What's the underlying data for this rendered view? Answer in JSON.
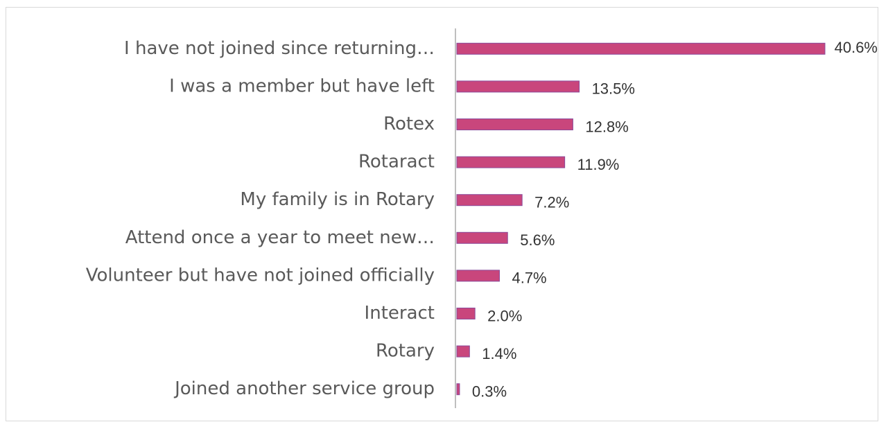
{
  "chart_data": {
    "type": "barh",
    "categories": [
      "I have not joined since returning…",
      "I was a member but have left",
      "Rotex",
      "Rotaract",
      "My family is in Rotary",
      "Attend once a year to meet new…",
      "Volunteer but have not joined officially",
      "Interact",
      "Rotary",
      "Joined another service group"
    ],
    "values": [
      40.6,
      13.5,
      12.8,
      11.9,
      7.2,
      5.6,
      4.7,
      2.0,
      1.4,
      0.3
    ],
    "value_labels": [
      "40.6%",
      "13.5%",
      "12.8%",
      "11.9%",
      "7.2%",
      "5.6%",
      "4.7%",
      "2.0%",
      "1.4%",
      "0.3%"
    ],
    "color": "#c9467c"
  }
}
